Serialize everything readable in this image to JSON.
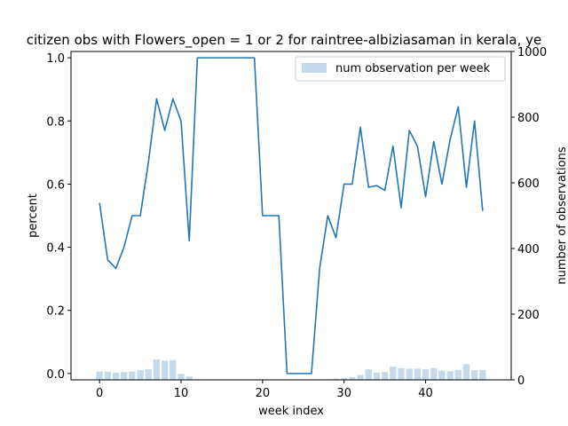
{
  "chart_data": {
    "type": "bar+line",
    "title": "citizen obs with Flowers_open = 1 or 2 for raintree-albiziasaman in kerala, ye",
    "xlabel": "week index",
    "ylabel_left": "percent",
    "ylabel_right": "number of observations",
    "xlim": [
      -3.5,
      50.5
    ],
    "ylim_left": [
      -0.02,
      1.02
    ],
    "ylim_right": [
      0,
      1000
    ],
    "x_ticks": [
      0,
      10,
      20,
      30,
      40
    ],
    "y_ticks_left": [
      0.0,
      0.2,
      0.4,
      0.6,
      0.8,
      1.0
    ],
    "y_ticks_right": [
      0,
      200,
      400,
      600,
      800,
      1000
    ],
    "grid": false,
    "legend": {
      "position": "top-right",
      "entries": [
        "num observation per week"
      ]
    },
    "bar_series": {
      "name": "num observation per week",
      "color": "#c5d9ec",
      "x": [
        0,
        1,
        2,
        3,
        4,
        5,
        6,
        7,
        8,
        9,
        10,
        11,
        12,
        13,
        14,
        15,
        16,
        17,
        18,
        19,
        20,
        21,
        22,
        23,
        24,
        25,
        26,
        27,
        28,
        29,
        30,
        31,
        32,
        33,
        34,
        35,
        36,
        37,
        38,
        39,
        40,
        41,
        42,
        43,
        44,
        45,
        46,
        47
      ],
      "values": [
        25,
        25,
        22,
        24,
        25,
        30,
        32,
        62,
        58,
        60,
        18,
        10,
        2,
        1,
        1,
        1,
        1,
        1,
        1,
        1,
        1,
        1,
        1,
        1,
        1,
        1,
        1,
        1,
        2,
        4,
        6,
        8,
        15,
        32,
        22,
        24,
        40,
        36,
        34,
        34,
        32,
        36,
        28,
        26,
        30,
        48,
        30,
        30
      ]
    },
    "line_series": {
      "color": "#1f77b4",
      "x": [
        0,
        1,
        2,
        3,
        4,
        5,
        6,
        7,
        8,
        9,
        10,
        11,
        12,
        13,
        14,
        15,
        16,
        17,
        18,
        19,
        20,
        21,
        22,
        23,
        24,
        25,
        26,
        27,
        28,
        29,
        30,
        31,
        32,
        33,
        34,
        35,
        36,
        37,
        38,
        39,
        40,
        41,
        42,
        43,
        44,
        45,
        46,
        47
      ],
      "values": [
        0.54,
        0.36,
        0.333,
        0.4,
        0.5,
        0.5,
        0.67,
        0.87,
        0.77,
        0.87,
        0.8,
        0.42,
        1.0,
        1.0,
        1.0,
        1.0,
        1.0,
        1.0,
        1.0,
        1.0,
        0.5,
        0.5,
        0.5,
        0.0,
        0.0,
        0.0,
        0.0,
        0.333,
        0.5,
        0.43,
        0.6,
        0.6,
        0.78,
        0.59,
        0.595,
        0.58,
        0.72,
        0.525,
        0.77,
        0.72,
        0.56,
        0.735,
        0.6,
        0.74,
        0.845,
        0.59,
        0.8,
        0.515
      ]
    }
  }
}
